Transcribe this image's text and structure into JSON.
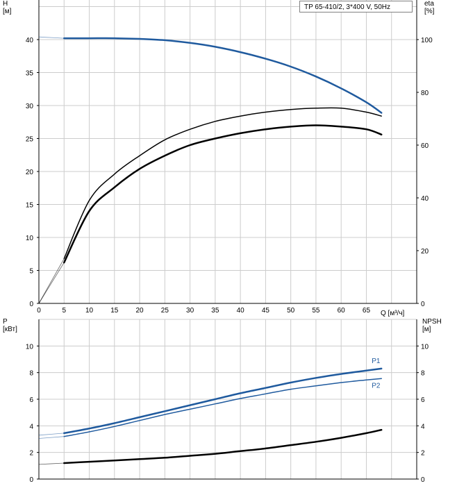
{
  "info_box": "TP 65-410/2, 3*400 V, 50Hz",
  "colors": {
    "head": "#1f5a9e",
    "power": "#1f5a9e",
    "eta": "#000000",
    "npsh": "#000000",
    "grid": "#cccccc",
    "axis": "#000000"
  },
  "chart_data": [
    {
      "type": "line",
      "panel": "top",
      "left_axis_label": "H\n[м]",
      "right_axis_label": "eta\n[%]",
      "xlabel": "Q [м³/ч]",
      "xlim": [
        0,
        75
      ],
      "ylim_left": [
        0,
        46
      ],
      "ylim_right": [
        0,
        115
      ],
      "x_ticks": [
        0,
        5,
        10,
        15,
        20,
        25,
        30,
        35,
        40,
        45,
        50,
        55,
        60,
        65
      ],
      "y_ticks_left": [
        0,
        5,
        10,
        15,
        20,
        25,
        30,
        35,
        40
      ],
      "y_ticks_right": [
        0,
        20,
        40,
        60,
        80,
        100
      ],
      "grid": true,
      "series": [
        {
          "key": "H",
          "axis": "left",
          "x": [
            0,
            5,
            10,
            15,
            20,
            25,
            30,
            35,
            40,
            45,
            50,
            55,
            60,
            65,
            68
          ],
          "y": [
            40.4,
            40.2,
            40.2,
            40.2,
            40.1,
            39.9,
            39.5,
            38.9,
            38.1,
            37.1,
            35.9,
            34.4,
            32.6,
            30.5,
            28.9
          ]
        },
        {
          "key": "eta_upper",
          "axis": "right",
          "x": [
            0,
            5,
            10,
            15,
            20,
            25,
            30,
            35,
            40,
            45,
            50,
            55,
            60,
            65,
            68
          ],
          "y": [
            0,
            17,
            39,
            49,
            56,
            62,
            66,
            69,
            71,
            72.5,
            73.5,
            74,
            74,
            72.5,
            71
          ]
        },
        {
          "key": "eta_lower",
          "axis": "right",
          "x": [
            0,
            5,
            10,
            15,
            20,
            25,
            30,
            35,
            40,
            45,
            50,
            55,
            60,
            65,
            68
          ],
          "y": [
            0,
            15.5,
            35,
            44,
            51,
            56,
            60,
            62.5,
            64.5,
            66,
            67,
            67.5,
            67,
            66,
            64
          ]
        }
      ]
    },
    {
      "type": "line",
      "panel": "bottom",
      "left_axis_label": "P\n[кВт]",
      "right_axis_label": "NPSH\n[м]",
      "xlim": [
        0,
        75
      ],
      "ylim_left": [
        0,
        12
      ],
      "ylim_right": [
        0,
        12
      ],
      "y_ticks_left": [
        0,
        2,
        4,
        6,
        8,
        10
      ],
      "y_ticks_right": [
        0,
        2,
        4,
        6,
        8,
        10
      ],
      "grid": true,
      "series": [
        {
          "name": "P1",
          "key": "P1",
          "axis": "left",
          "x": [
            0,
            5,
            10,
            15,
            20,
            25,
            30,
            35,
            40,
            45,
            50,
            55,
            60,
            65,
            68
          ],
          "y": [
            3.3,
            3.45,
            3.8,
            4.2,
            4.65,
            5.1,
            5.55,
            6.0,
            6.45,
            6.85,
            7.25,
            7.6,
            7.9,
            8.15,
            8.3
          ]
        },
        {
          "name": "P2",
          "key": "P2",
          "axis": "left",
          "x": [
            0,
            5,
            10,
            15,
            20,
            25,
            30,
            35,
            40,
            45,
            50,
            55,
            60,
            65,
            68
          ],
          "y": [
            3.05,
            3.2,
            3.55,
            3.95,
            4.4,
            4.85,
            5.25,
            5.65,
            6.05,
            6.4,
            6.75,
            7.0,
            7.25,
            7.45,
            7.55
          ]
        },
        {
          "key": "NPSH",
          "axis": "right",
          "x": [
            0,
            5,
            10,
            15,
            20,
            25,
            30,
            35,
            40,
            45,
            50,
            55,
            60,
            65,
            68
          ],
          "y": [
            1.1,
            1.2,
            1.3,
            1.4,
            1.5,
            1.6,
            1.75,
            1.9,
            2.1,
            2.3,
            2.55,
            2.8,
            3.1,
            3.45,
            3.7
          ]
        }
      ]
    }
  ]
}
